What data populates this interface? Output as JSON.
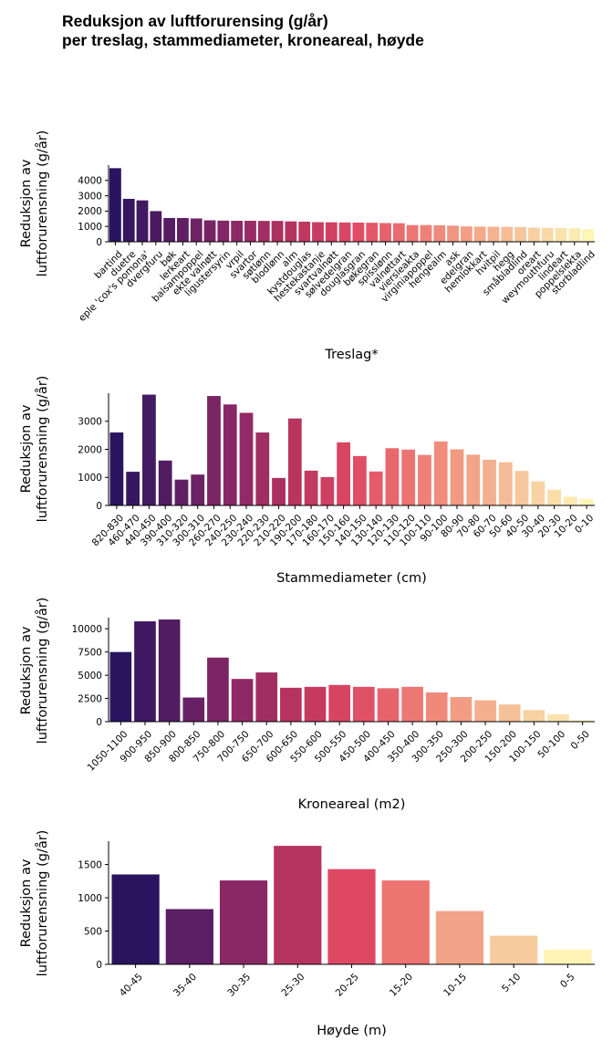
{
  "title_line1": "Reduksjon av luftforurensing (g/år)",
  "title_line2": "per treslag, stammediameter, kroneareal, høyde",
  "chart_data": [
    {
      "type": "bar",
      "xlabel": "Treslag*",
      "ylabel_line1": "Reduksjon av",
      "ylabel_line2": "luftforurensning (g/år)",
      "ylim": [
        0,
        5000
      ],
      "yticks": [
        0,
        1000,
        2000,
        3000,
        4000
      ],
      "ytick_labels": [
        "0",
        "1000",
        "2000",
        "3000",
        "4000"
      ],
      "categories": [
        "bartind",
        "duetre",
        "eple 'cox's pomona'",
        "dvergfuru",
        "bøk",
        "lerkeart",
        "balsampoppel",
        "ekte valnøtt",
        "ligustersyrin",
        "vrpil",
        "svartor",
        "søtlønn",
        "blodlønn",
        "alm",
        "kystdouglas",
        "hestekastanje",
        "svartvalnøtt",
        "sølvedelgran",
        "douglasgran",
        "bøkegran",
        "spisslønn",
        "valnøttart",
        "viersleakta",
        "virginiapoppel",
        "hengealm",
        "ask",
        "edelgran",
        "hemlokkart",
        "hvitpil",
        "hegg",
        "småbladlind",
        "oreart",
        "weymouthfuru",
        "lindeart",
        "poppelslekta",
        "storbladlind"
      ],
      "values": [
        4800,
        2800,
        2700,
        2000,
        1550,
        1550,
        1520,
        1400,
        1380,
        1370,
        1370,
        1360,
        1360,
        1330,
        1310,
        1280,
        1270,
        1260,
        1250,
        1240,
        1220,
        1210,
        1090,
        1090,
        1080,
        1050,
        1000,
        990,
        980,
        970,
        960,
        920,
        910,
        900,
        880,
        820
      ]
    },
    {
      "type": "bar",
      "xlabel": "Stammediameter (cm)",
      "ylabel_line1": "Reduksjon av",
      "ylabel_line2": "luftforurensning (g/år)",
      "ylim": [
        0,
        4000
      ],
      "yticks": [
        0,
        1000,
        2000,
        3000
      ],
      "ytick_labels": [
        "0",
        "1000",
        "2000",
        "3000"
      ],
      "categories": [
        "820-830",
        "460-470",
        "440-450",
        "390-400",
        "310-320",
        "300-310",
        "260-270",
        "240-250",
        "230-240",
        "220-230",
        "210-220",
        "190-200",
        "170-180",
        "160-170",
        "150-160",
        "140-150",
        "130-140",
        "120-130",
        "110-120",
        "100-110",
        "90-100",
        "80-90",
        "70-80",
        "60-70",
        "50-60",
        "40-50",
        "30-40",
        "20-30",
        "10-20",
        "0-10"
      ],
      "values": [
        2600,
        1200,
        3950,
        1600,
        920,
        1100,
        3900,
        3600,
        3300,
        2600,
        980,
        3100,
        1240,
        1010,
        2250,
        1760,
        1210,
        2040,
        1990,
        1800,
        2280,
        2000,
        1810,
        1630,
        1540,
        1230,
        860,
        560,
        310,
        230
      ]
    },
    {
      "type": "bar",
      "xlabel": "Kroneareal (m2)",
      "ylabel_line1": "Reduksjon av",
      "ylabel_line2": "luftforurensning (g/år)",
      "ylim": [
        0,
        11200
      ],
      "yticks": [
        0,
        2500,
        5000,
        7500,
        10000
      ],
      "ytick_labels": [
        "0",
        "2500",
        "5000",
        "7500",
        "10000"
      ],
      "categories": [
        "1050-1100",
        "900-950",
        "850-900",
        "800-850",
        "750-800",
        "700-750",
        "650-700",
        "600-650",
        "550-600",
        "500-550",
        "450-500",
        "400-450",
        "350-400",
        "300-350",
        "250-300",
        "200-250",
        "150-200",
        "100-150",
        "50-100",
        "0-50"
      ],
      "values": [
        7500,
        10800,
        11000,
        2600,
        6900,
        4600,
        5300,
        3650,
        3750,
        3950,
        3750,
        3600,
        3750,
        3150,
        2650,
        2300,
        1850,
        1250,
        800,
        150
      ]
    },
    {
      "type": "bar",
      "xlabel": "Høyde (m)",
      "ylabel_line1": "Reduksjon av",
      "ylabel_line2": "luftforurensning (g/år)",
      "ylim": [
        0,
        1850
      ],
      "yticks": [
        0,
        500,
        1000,
        1500
      ],
      "ytick_labels": [
        "0",
        "500",
        "1000",
        "1500"
      ],
      "categories": [
        "40-45",
        "35-40",
        "30-35",
        "25-30",
        "20-25",
        "15-20",
        "10-15",
        "5-10",
        "0-5"
      ],
      "values": [
        1350,
        830,
        1260,
        1780,
        1430,
        1260,
        800,
        430,
        220
      ]
    }
  ]
}
